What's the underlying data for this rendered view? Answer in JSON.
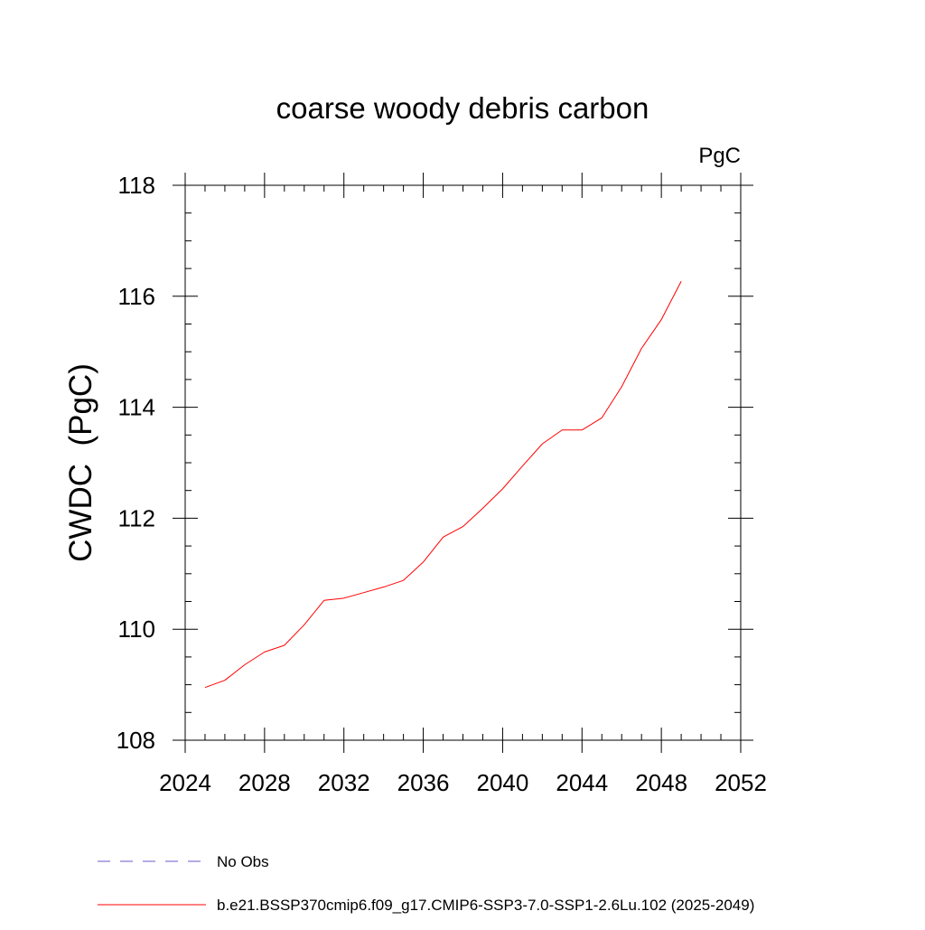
{
  "chart_data": {
    "type": "line",
    "title": "coarse woody debris carbon",
    "units": "PgC",
    "ylabel": "CWDC  (PgC)",
    "xlabel": "",
    "xlim": [
      2024,
      2052
    ],
    "ylim": [
      108,
      118
    ],
    "x_ticks": [
      2024,
      2028,
      2032,
      2036,
      2040,
      2044,
      2048,
      2052
    ],
    "y_ticks": [
      108,
      110,
      112,
      114,
      116,
      118
    ],
    "x_tick_labels": [
      "2024",
      "2028",
      "2032",
      "2036",
      "2040",
      "2044",
      "2048",
      "2052"
    ],
    "y_tick_labels": [
      "108",
      "110",
      "112",
      "114",
      "116",
      "118"
    ],
    "grid": false,
    "legend_position": "bottom-left",
    "series": [
      {
        "name": "b.e21.BSSP370cmip6.f09_g17.CMIP6-SSP3-7.0-SSP1-2.6Lu.102 (2025-2049)",
        "color": "#ff0000",
        "style": "solid",
        "x": [
          2025,
          2026,
          2027,
          2028,
          2029,
          2030,
          2031,
          2032,
          2033,
          2034,
          2035,
          2036,
          2037,
          2038,
          2039,
          2040,
          2041,
          2042,
          2043,
          2044,
          2045,
          2046,
          2047,
          2048,
          2049
        ],
        "y": [
          108.95,
          109.08,
          109.36,
          109.59,
          109.71,
          110.08,
          110.52,
          110.56,
          110.66,
          110.76,
          110.88,
          111.21,
          111.66,
          111.85,
          112.18,
          112.53,
          112.94,
          113.34,
          113.59,
          113.59,
          113.81,
          114.37,
          115.06,
          115.58,
          116.27
        ]
      }
    ],
    "legend": [
      {
        "label": "No Obs",
        "color": "#6a5acd",
        "style": "dashed"
      },
      {
        "label": "b.e21.BSSP370cmip6.f09_g17.CMIP6-SSP3-7.0-SSP1-2.6Lu.102 (2025-2049)",
        "color": "#ff0000",
        "style": "solid"
      }
    ]
  }
}
